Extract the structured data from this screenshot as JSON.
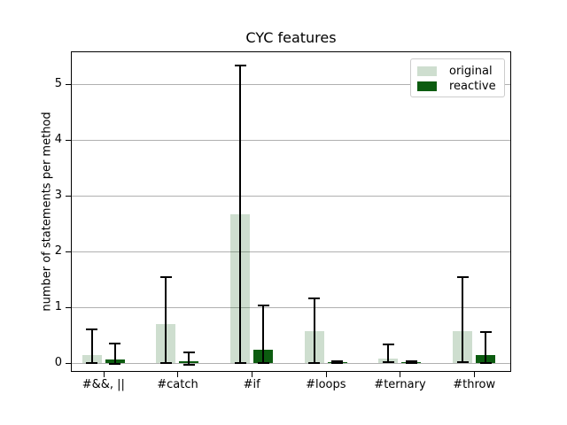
{
  "chart_data": {
    "type": "bar",
    "title": "CYC features",
    "xlabel": "",
    "ylabel": "number of statements per method",
    "categories": [
      "#&&, ||",
      "#catch",
      "#if",
      "#loops",
      "#ternary",
      "#throw"
    ],
    "series": [
      {
        "name": "original",
        "color": "#0c5c10",
        "opacity": 0.2,
        "values": [
          0.14,
          0.7,
          2.66,
          0.57,
          0.08,
          0.57
        ],
        "err_top": [
          0.6,
          1.53,
          5.33,
          1.16,
          0.33,
          1.54
        ],
        "err_bottom": [
          0.0,
          0.0,
          0.0,
          0.0,
          0.01,
          0.01
        ]
      },
      {
        "name": "reactive",
        "color": "#0c5c10",
        "opacity": 1.0,
        "values": [
          0.06,
          0.03,
          0.23,
          0.01,
          0.01,
          0.14
        ],
        "err_top": [
          0.34,
          0.18,
          1.03,
          0.02,
          0.02,
          0.55
        ],
        "err_bottom": [
          -0.02,
          -0.03,
          0.0,
          0.0,
          0.0,
          0.0
        ]
      }
    ],
    "yticks": [
      0,
      1,
      2,
      3,
      4,
      5
    ],
    "ylim": [
      -0.165,
      5.585
    ],
    "xlim": [
      -0.44,
      5.5
    ],
    "grid": true,
    "legend_position": "upper right"
  },
  "colors": {
    "grid": "#b0b0b0",
    "axis": "#000000",
    "errorbar": "#000000",
    "background": "#ffffff",
    "legend_border": "#cccccc"
  }
}
